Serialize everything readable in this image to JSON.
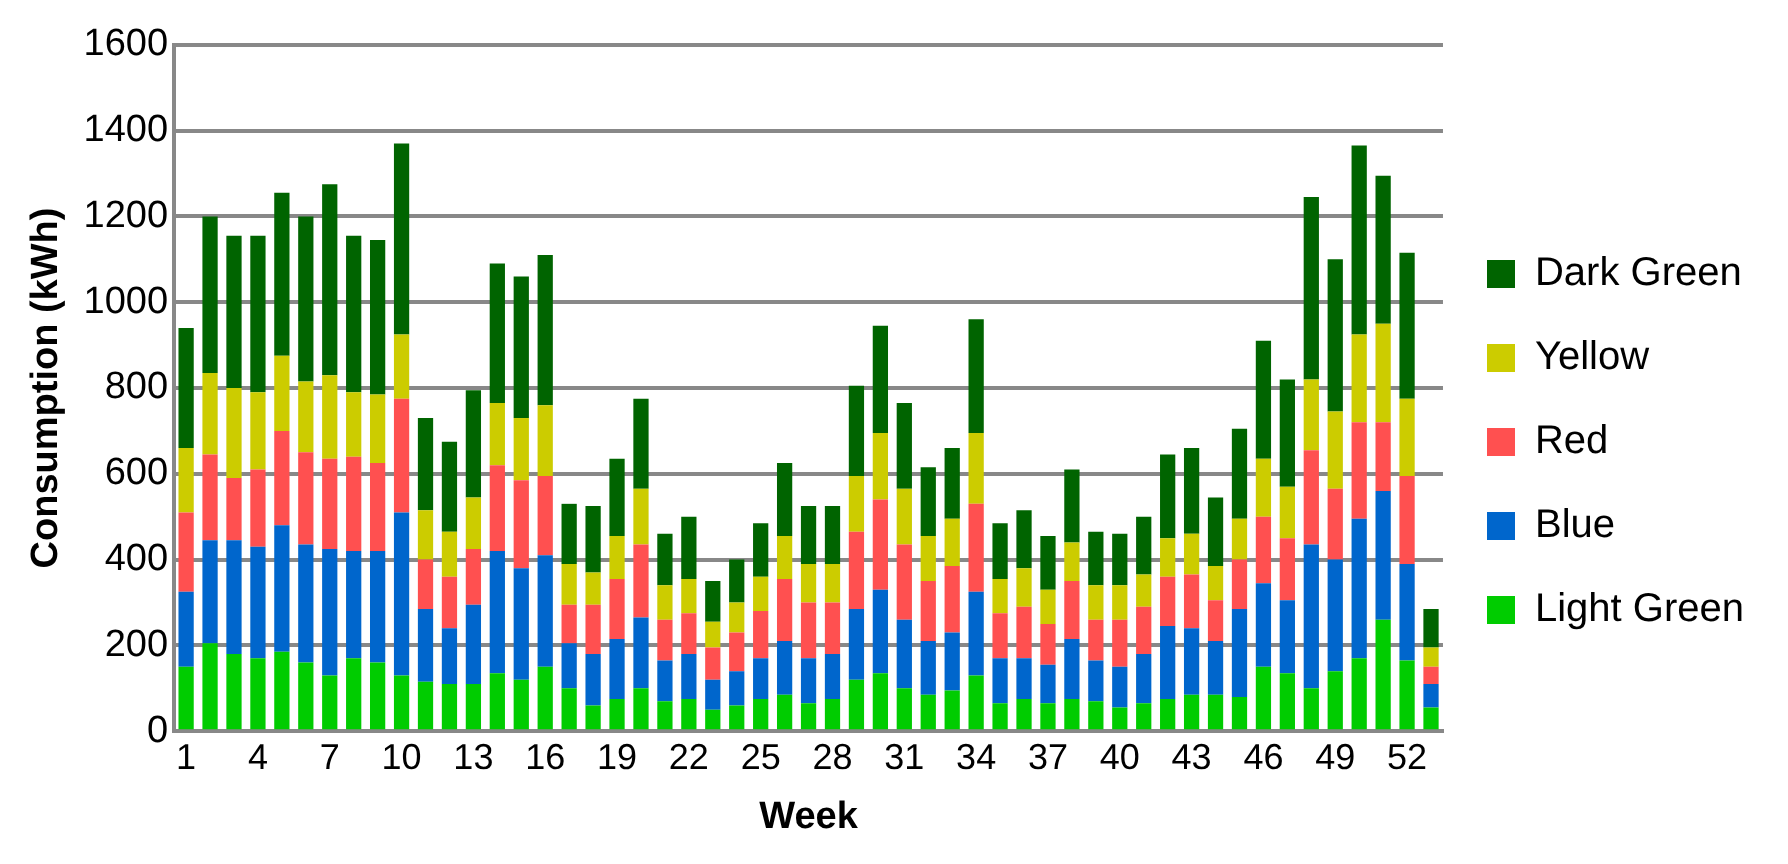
{
  "chart_data": {
    "type": "bar",
    "stacked": true,
    "xlabel": "Week",
    "ylabel": "Consumption (kWh)",
    "categories": [
      "1",
      null,
      null,
      "4",
      null,
      null,
      "7",
      null,
      null,
      "10",
      null,
      null,
      "13",
      null,
      null,
      "16",
      null,
      null,
      "19",
      null,
      null,
      "22",
      null,
      null,
      "25",
      null,
      null,
      "28",
      null,
      null,
      "31",
      null,
      null,
      "34",
      null,
      null,
      "37",
      null,
      null,
      "40",
      null,
      null,
      "43",
      null,
      null,
      "46",
      null,
      null,
      "49",
      null,
      null,
      "52",
      null
    ],
    "series": [
      {
        "name": "Light Green",
        "color": "#00cc00",
        "values": [
          150,
          205,
          180,
          170,
          185,
          160,
          130,
          170,
          160,
          130,
          115,
          110,
          110,
          135,
          120,
          150,
          100,
          60,
          75,
          100,
          70,
          75,
          50,
          60,
          75,
          85,
          65,
          75,
          120,
          135,
          100,
          85,
          95,
          130,
          65,
          75,
          65,
          75,
          70,
          55,
          65,
          75,
          85,
          85,
          80,
          150,
          135,
          100,
          140,
          170,
          260,
          165,
          55
        ]
      },
      {
        "name": "Blue",
        "color": "#0066cc",
        "values": [
          175,
          240,
          265,
          260,
          295,
          275,
          295,
          250,
          260,
          380,
          170,
          130,
          185,
          285,
          260,
          260,
          105,
          120,
          140,
          165,
          95,
          105,
          70,
          80,
          95,
          125,
          105,
          105,
          165,
          195,
          160,
          125,
          135,
          195,
          105,
          95,
          90,
          140,
          95,
          95,
          115,
          170,
          155,
          125,
          205,
          195,
          170,
          335,
          260,
          325,
          300,
          225,
          55
        ]
      },
      {
        "name": "Red",
        "color": "#ff5050",
        "values": [
          185,
          200,
          145,
          180,
          220,
          215,
          210,
          220,
          205,
          265,
          115,
          120,
          130,
          200,
          205,
          185,
          90,
          115,
          140,
          170,
          95,
          95,
          75,
          90,
          110,
          145,
          130,
          120,
          180,
          210,
          175,
          140,
          155,
          205,
          105,
          120,
          95,
          135,
          95,
          110,
          110,
          115,
          125,
          95,
          115,
          155,
          145,
          220,
          165,
          225,
          160,
          205,
          40
        ]
      },
      {
        "name": "Yellow",
        "color": "#cccc00",
        "values": [
          150,
          190,
          210,
          180,
          175,
          165,
          195,
          150,
          160,
          150,
          115,
          105,
          120,
          145,
          145,
          165,
          95,
          75,
          100,
          130,
          80,
          80,
          60,
          70,
          80,
          100,
          90,
          90,
          130,
          155,
          130,
          105,
          110,
          165,
          80,
          90,
          80,
          90,
          80,
          80,
          75,
          90,
          95,
          80,
          95,
          135,
          120,
          165,
          180,
          205,
          230,
          180,
          45
        ]
      },
      {
        "name": "Dark Green",
        "color": "#006400",
        "values": [
          280,
          365,
          355,
          365,
          380,
          385,
          445,
          365,
          360,
          445,
          215,
          210,
          250,
          325,
          330,
          350,
          140,
          155,
          180,
          210,
          120,
          145,
          95,
          100,
          125,
          170,
          135,
          135,
          210,
          250,
          200,
          160,
          165,
          265,
          130,
          135,
          125,
          170,
          125,
          120,
          135,
          195,
          200,
          160,
          210,
          275,
          250,
          425,
          355,
          440,
          345,
          340,
          90
        ]
      }
    ],
    "ylim": [
      0,
      1600
    ],
    "yticks": [
      0,
      200,
      400,
      600,
      800,
      1000,
      1200,
      1400,
      1600
    ],
    "grid": "y",
    "legend": "right"
  }
}
